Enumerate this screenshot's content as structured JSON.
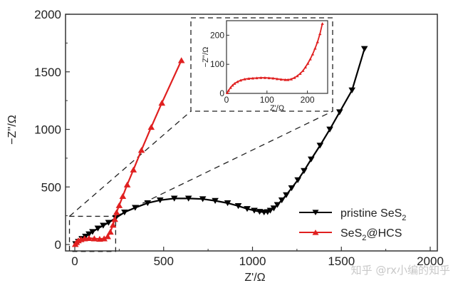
{
  "chart_data": {
    "type": "scatter",
    "title": "",
    "xlabel": "Z'/Ω",
    "ylabel": "−Z''/Ω",
    "xlim": [
      -30,
      2080
    ],
    "ylim": [
      -40,
      2000
    ],
    "xticks": [
      0,
      500,
      1000,
      1500,
      2000
    ],
    "yticks": [
      0,
      500,
      1000,
      1500,
      2000
    ],
    "xtick_labels": [
      "0",
      "500",
      "1000",
      "1500",
      "2000"
    ],
    "ytick_labels": [
      "0",
      "500",
      "1000",
      "1500",
      "2000"
    ],
    "grid": false,
    "legend_position": "bottom-right",
    "series": [
      {
        "name": "pristine SeS2",
        "name_main": "pristine SeS",
        "name_sub": "2",
        "color": "#000000",
        "marker": "triangle-down",
        "x": [
          5,
          20,
          40,
          60,
          80,
          100,
          130,
          160,
          190,
          230,
          280,
          340,
          410,
          480,
          560,
          640,
          720,
          790,
          860,
          920,
          970,
          1010,
          1040,
          1065,
          1085,
          1100,
          1120,
          1140,
          1165,
          1190,
          1220,
          1255,
          1290,
          1330,
          1380,
          1435,
          1490,
          1560,
          1630
        ],
        "y": [
          5,
          25,
          50,
          70,
          90,
          110,
          140,
          165,
          190,
          230,
          280,
          320,
          360,
          385,
          400,
          400,
          395,
          380,
          360,
          335,
          310,
          295,
          285,
          280,
          283,
          295,
          315,
          345,
          385,
          430,
          490,
          560,
          640,
          740,
          860,
          1000,
          1150,
          1340,
          1700
        ]
      },
      {
        "name": "SeS2@HCS",
        "name_main": "SeS",
        "name_sub": "2",
        "name_tail": "@HCS",
        "color": "#e02020",
        "marker": "triangle-up",
        "x": [
          3,
          10,
          20,
          35,
          55,
          80,
          110,
          140,
          165,
          185,
          200,
          215,
          225,
          235,
          250,
          270,
          295,
          330,
          375,
          430,
          490,
          600
        ],
        "y": [
          3,
          20,
          35,
          45,
          52,
          55,
          52,
          48,
          52,
          70,
          110,
          170,
          220,
          280,
          340,
          420,
          520,
          650,
          820,
          1020,
          1230,
          1600
        ]
      }
    ],
    "inset": {
      "xlabel": "Z'/Ω",
      "ylabel": "−Z''/Ω",
      "xlim": [
        0,
        250
      ],
      "ylim": [
        0,
        250
      ],
      "xticks": [
        0,
        100,
        200
      ],
      "yticks": [
        0,
        100,
        200
      ],
      "xtick_labels": [
        "0",
        "100",
        "200"
      ],
      "ytick_labels": [
        "0",
        "100",
        "200"
      ],
      "series_name": "SeS2@HCS",
      "color": "#e02020",
      "x": [
        2,
        5,
        10,
        15,
        20,
        27,
        35,
        45,
        55,
        65,
        75,
        85,
        95,
        105,
        115,
        125,
        135,
        145,
        152,
        160,
        168,
        175,
        182,
        189,
        195,
        201,
        207,
        213,
        219,
        225,
        231,
        237
      ],
      "y": [
        2,
        10,
        20,
        28,
        34,
        40,
        45,
        49,
        51,
        52,
        53,
        54,
        54,
        53,
        52,
        50,
        48,
        47,
        47,
        49,
        54,
        60,
        68,
        78,
        90,
        103,
        118,
        135,
        155,
        177,
        205,
        240
      ]
    },
    "zoom_box": {
      "x": [
        -30,
        230
      ],
      "y": [
        -60,
        245
      ]
    }
  },
  "watermark": "知乎 @rx小编的知乎"
}
